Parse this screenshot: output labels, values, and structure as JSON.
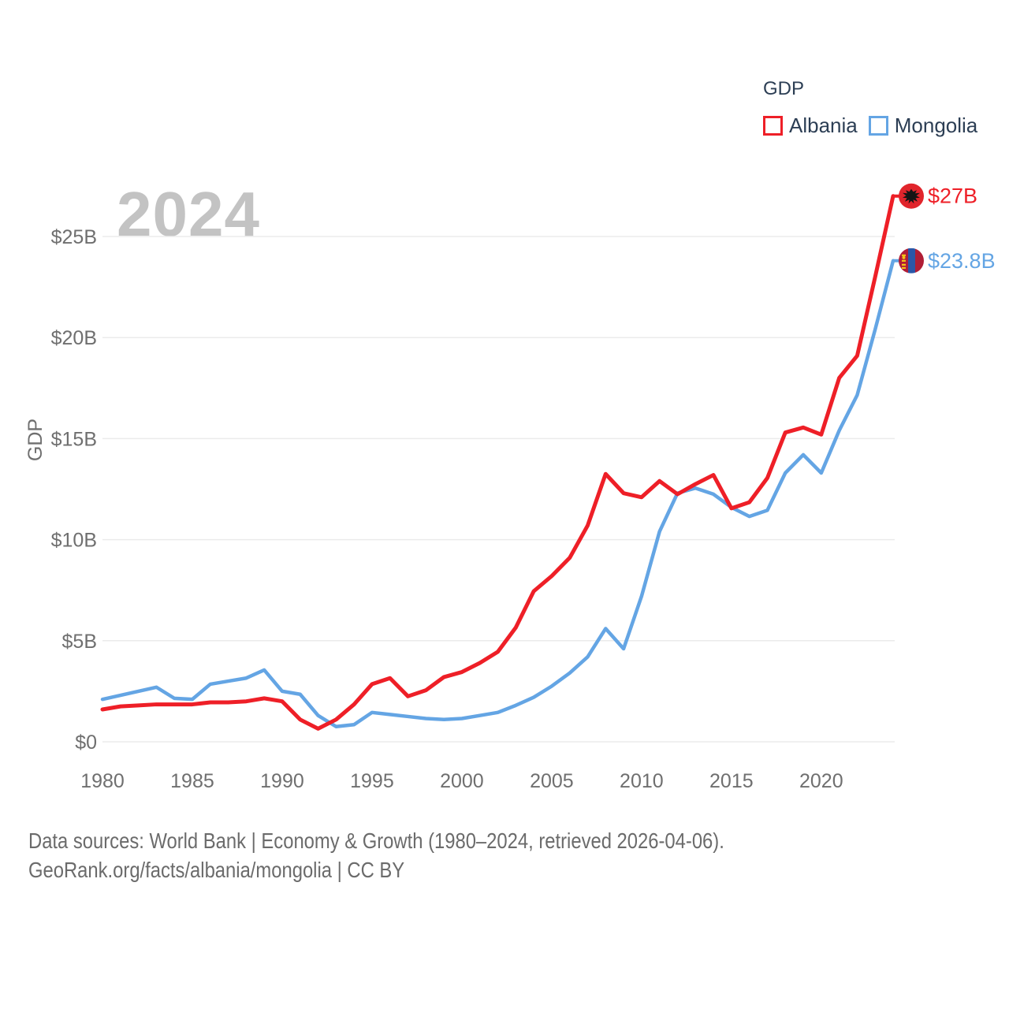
{
  "watermark": {
    "year": "2024"
  },
  "legend": {
    "title": "GDP",
    "items": [
      {
        "label": "Albania",
        "color": "#ee1f27"
      },
      {
        "label": "Mongolia",
        "color": "#64a5e4"
      }
    ]
  },
  "footer": {
    "line1": "Data sources: World Bank | Economy & Growth (1980–2024, retrieved 2026-04-06).",
    "line2": "GeoRank.org/facts/albania/mongolia | CC BY"
  },
  "chart_data": {
    "type": "line",
    "title": "GDP",
    "xlabel": "",
    "ylabel": "GDP",
    "xlim": [
      1980,
      2024
    ],
    "ylim": [
      0,
      27.5
    ],
    "grid": "horizontal",
    "grid_color": "#ebebeb",
    "tick_color": "#6f6f6f",
    "legend_position": "top-right",
    "x_ticks": [
      1980,
      1985,
      1990,
      1995,
      2000,
      2005,
      2010,
      2015,
      2020
    ],
    "y_ticks": {
      "values": [
        0,
        5,
        10,
        15,
        20,
        25
      ],
      "labels": [
        "$0",
        "$5B",
        "$10B",
        "$15B",
        "$20B",
        "$25B"
      ]
    },
    "x": [
      1980,
      1981,
      1982,
      1983,
      1984,
      1985,
      1986,
      1987,
      1988,
      1989,
      1990,
      1991,
      1992,
      1993,
      1994,
      1995,
      1996,
      1997,
      1998,
      1999,
      2000,
      2001,
      2002,
      2003,
      2004,
      2005,
      2006,
      2007,
      2008,
      2009,
      2010,
      2011,
      2012,
      2013,
      2014,
      2015,
      2016,
      2017,
      2018,
      2019,
      2020,
      2021,
      2022,
      2023,
      2024
    ],
    "series": [
      {
        "name": "Albania",
        "color": "#ee1f27",
        "end_label": "$27B",
        "flag": "albania-flag",
        "flag_colors": {
          "bg": "#e1252c",
          "eagle": "#151515"
        },
        "values": [
          1.6,
          1.75,
          1.8,
          1.85,
          1.85,
          1.85,
          1.95,
          1.95,
          2.0,
          2.15,
          2.0,
          1.1,
          0.65,
          1.1,
          1.85,
          2.85,
          3.15,
          2.25,
          2.55,
          3.2,
          3.45,
          3.9,
          4.45,
          5.65,
          7.45,
          8.2,
          9.1,
          10.7,
          13.25,
          12.3,
          12.1,
          12.9,
          12.25,
          12.75,
          13.2,
          11.55,
          11.85,
          13.05,
          15.3,
          15.55,
          15.2,
          18.0,
          19.1,
          23.0,
          27.0
        ]
      },
      {
        "name": "Mongolia",
        "color": "#64a5e4",
        "end_label": "$23.8B",
        "flag": "mongolia-flag",
        "flag_colors": {
          "red": "#b01e36",
          "blue": "#2a57a8",
          "yellow": "#f2c517"
        },
        "values": [
          2.1,
          2.3,
          2.5,
          2.7,
          2.15,
          2.1,
          2.85,
          3.0,
          3.15,
          3.55,
          2.5,
          2.35,
          1.3,
          0.75,
          0.85,
          1.45,
          1.35,
          1.25,
          1.15,
          1.1,
          1.15,
          1.3,
          1.45,
          1.8,
          2.2,
          2.75,
          3.4,
          4.2,
          5.6,
          4.6,
          7.2,
          10.4,
          12.3,
          12.55,
          12.25,
          11.6,
          11.15,
          11.45,
          13.3,
          14.2,
          13.3,
          15.4,
          17.15,
          20.4,
          23.8
        ]
      }
    ]
  }
}
